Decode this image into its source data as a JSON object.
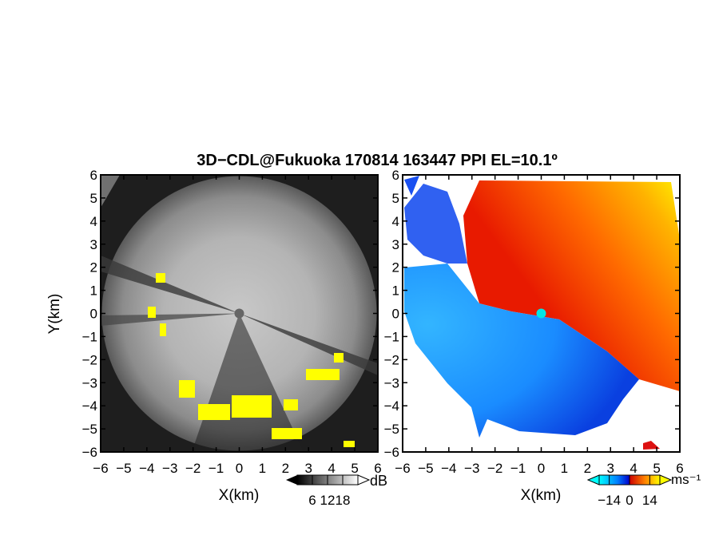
{
  "title": "3D−CDL@Fukuoka 170814 163447 PPI EL=10.1º",
  "chart_data": [
    {
      "type": "heatmap",
      "panel": "reflectivity",
      "xlabel": "X(km)",
      "ylabel": "Y(km)",
      "xlim": [
        -6,
        6
      ],
      "ylim": [
        -6,
        6
      ],
      "xticks": [
        "−6",
        "−5",
        "−4",
        "−3",
        "−2",
        "−1",
        "0",
        "1",
        "2",
        "3",
        "4",
        "5",
        "6"
      ],
      "yticks": [
        "−6",
        "−5",
        "−4",
        "−3",
        "−2",
        "−1",
        "0",
        "1",
        "2",
        "3",
        "4",
        "5",
        "6"
      ],
      "colorbar": {
        "unit": "dB",
        "ticks": [
          "6",
          "12",
          "18"
        ],
        "range": [
          0,
          24
        ],
        "colors": [
          "#000000",
          "#ffffff"
        ]
      },
      "highlight_color": "#ffff00"
    },
    {
      "type": "heatmap",
      "panel": "doppler-velocity",
      "xlabel": "X(km)",
      "ylabel": "",
      "xlim": [
        -6,
        6
      ],
      "ylim": [
        -6,
        6
      ],
      "xticks": [
        "−6",
        "−5",
        "−4",
        "−3",
        "−2",
        "−1",
        "0",
        "1",
        "2",
        "3",
        "4",
        "5",
        "6"
      ],
      "yticks": [
        "−6",
        "−5",
        "−4",
        "−3",
        "−2",
        "−1",
        "0",
        "1",
        "2",
        "3",
        "4",
        "5",
        "6"
      ],
      "colorbar": {
        "unit": "ms⁻¹",
        "ticks": [
          "−14",
          "0",
          "14"
        ],
        "range": [
          -21,
          21
        ],
        "colors": [
          "#00ffff",
          "#0080ff",
          "#0000cc",
          "#cc0000",
          "#ff8000",
          "#ffff00"
        ]
      }
    }
  ]
}
